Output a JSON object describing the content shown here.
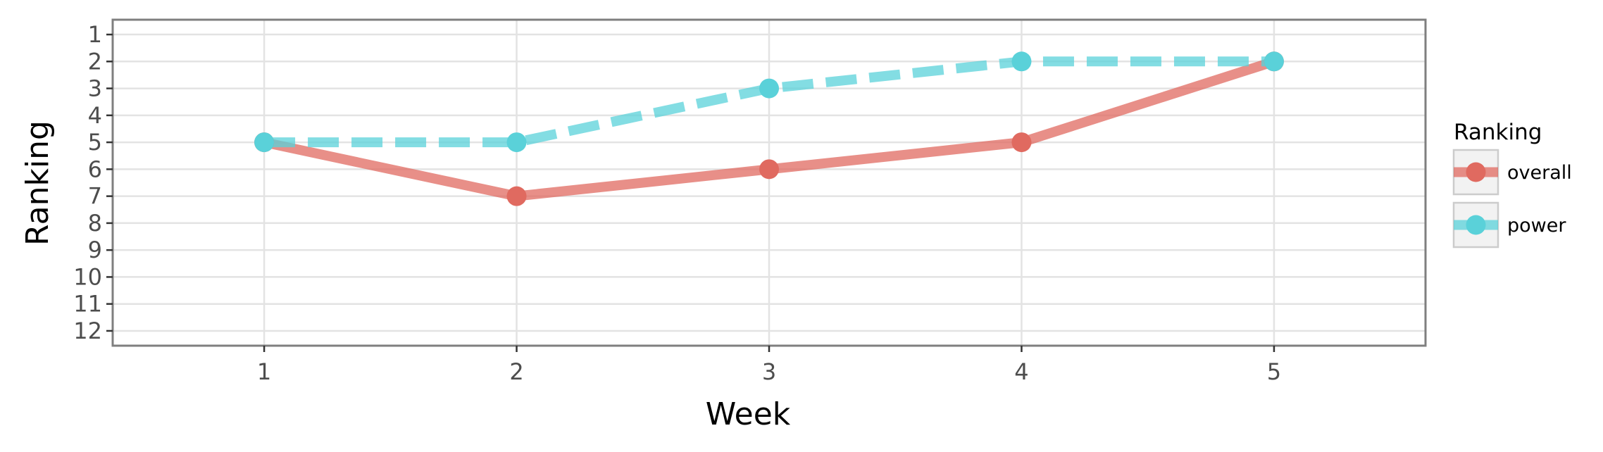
{
  "chart_data": {
    "type": "line",
    "title": "",
    "xlabel": "Week",
    "ylabel": "Ranking",
    "x": [
      1,
      2,
      3,
      4,
      5
    ],
    "x_ticks": [
      "1",
      "2",
      "3",
      "4",
      "5"
    ],
    "xlim": [
      0.4,
      5.6
    ],
    "y_ticks": [
      "1",
      "2",
      "3",
      "4",
      "5",
      "6",
      "7",
      "8",
      "9",
      "10",
      "11",
      "12"
    ],
    "ylim": [
      12.55,
      0.45
    ],
    "y_reversed": true,
    "grid": true,
    "legend": {
      "title": "Ranking",
      "position": "right"
    },
    "series": [
      {
        "name": "overall",
        "values": [
          5,
          7,
          6,
          5,
          2
        ],
        "color": "#e06a60",
        "line_style": "solid"
      },
      {
        "name": "power",
        "values": [
          5,
          5,
          3,
          2,
          2
        ],
        "color": "#5ad1d9",
        "line_style": "dashed"
      }
    ]
  }
}
